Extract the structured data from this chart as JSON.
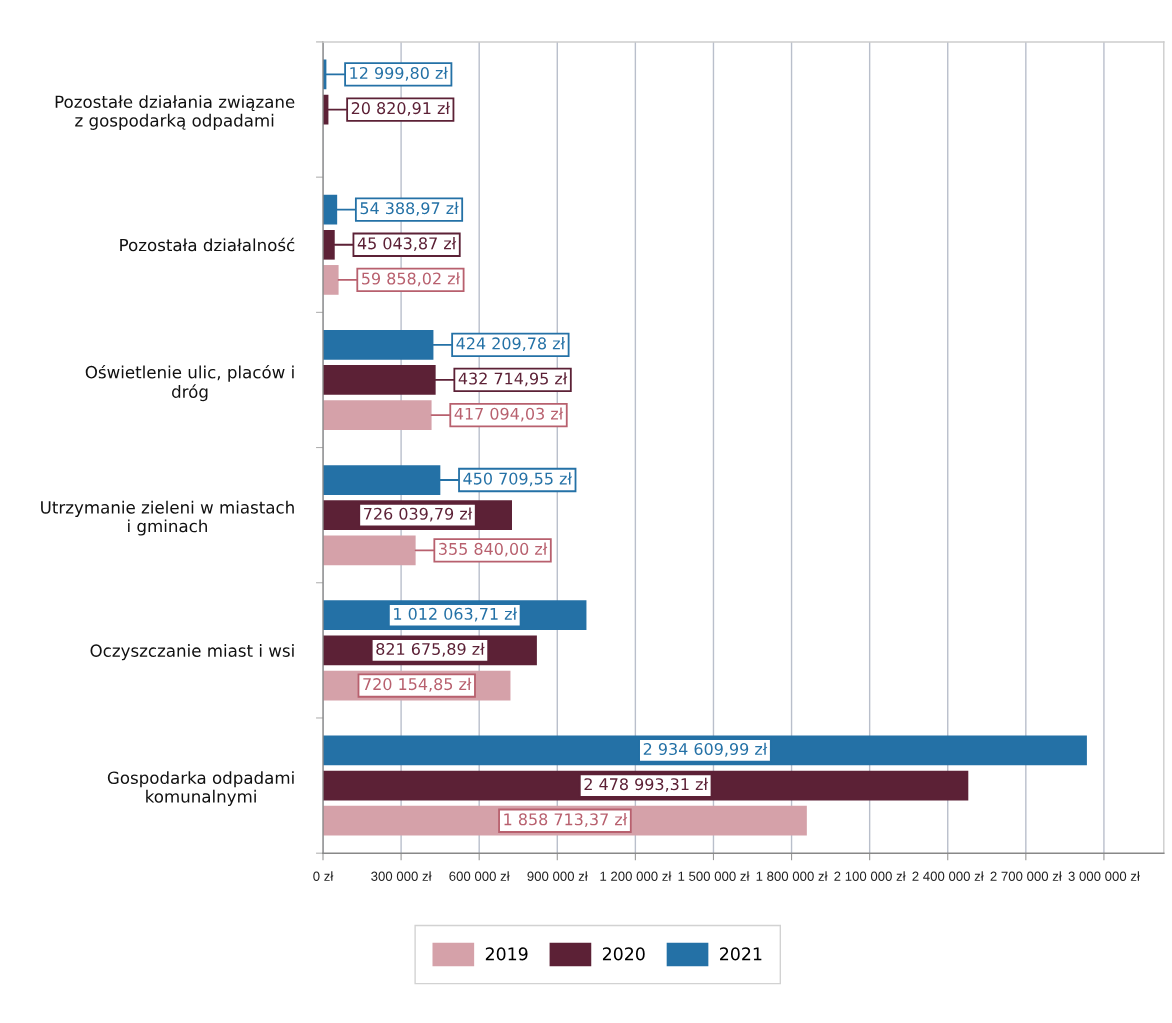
{
  "chart_data": {
    "type": "bar",
    "orientation": "horizontal",
    "categories": [
      "Pozostałe działania związane\nz gospodarką odpadami",
      "Pozostała działalność",
      "Oświetlenie ulic, placów i\ndróg",
      "Utrzymanie zieleni w miastach\ni gminach",
      "Oczyszczanie miast i wsi",
      "Gospodarka odpadami\nkomunalnymi"
    ],
    "series": [
      {
        "name": "2019",
        "color": "#d5a1a9",
        "values": [
          null,
          59858.02,
          417094.03,
          355840.0,
          720154.85,
          1858713.37
        ],
        "value_labels": [
          null,
          "59 858,02 zł",
          "417 094,03 zł",
          "355 840,00 zł",
          "720 154,85 zł",
          "1 858 713,37 zł"
        ]
      },
      {
        "name": "2020",
        "color": "#5c2136",
        "values": [
          20820.91,
          45043.87,
          432714.95,
          726039.79,
          821675.89,
          2478993.31
        ],
        "value_labels": [
          "20 820,91 zł",
          "45 043,87 zł",
          "432 714,95 zł",
          "726 039,79 zł",
          "821 675,89 zł",
          "2 478 993,31 zł"
        ]
      },
      {
        "name": "2021",
        "color": "#2471a6",
        "values": [
          12999.8,
          54388.97,
          424209.78,
          450709.55,
          1012063.71,
          2934609.99
        ],
        "value_labels": [
          "12 999,80 zł",
          "54 388,97 zł",
          "424 209,78 zł",
          "450 709,55 zł",
          "1 012 063,71 zł",
          "2 934 609,99 zł"
        ]
      }
    ],
    "xlim": [
      0,
      3230000
    ],
    "xticks": [
      {
        "value": 0,
        "label": "0 zł"
      },
      {
        "value": 300000,
        "label": "300 000 zł"
      },
      {
        "value": 600000,
        "label": "600 000 zł"
      },
      {
        "value": 900000,
        "label": "900 000 zł"
      },
      {
        "value": 1200000,
        "label": "1 200 000 zł"
      },
      {
        "value": 1500000,
        "label": "1 500 000 zł"
      },
      {
        "value": 1800000,
        "label": "1 800 000 zł"
      },
      {
        "value": 2100000,
        "label": "2 100 000 zł"
      },
      {
        "value": 2400000,
        "label": "2 400 000 zł"
      },
      {
        "value": 2700000,
        "label": "2 700 000 zł"
      },
      {
        "value": 3000000,
        "label": "3 000 000 zł"
      }
    ],
    "grid": "x",
    "legend": "bottom"
  }
}
